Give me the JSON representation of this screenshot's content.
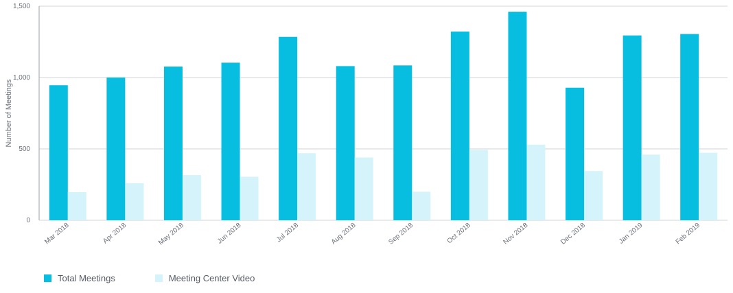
{
  "colors": {
    "total": "#07bde0",
    "video": "#d4f3fa",
    "grid": "#cfd3d7",
    "axis_text": "#6b7079"
  },
  "chart_data": {
    "type": "bar",
    "title": "",
    "xlabel": "",
    "ylabel": "Number of Meetings",
    "ylim": [
      0,
      1500
    ],
    "yticks": [
      0,
      500,
      1000,
      1500
    ],
    "ytick_labels": [
      "0",
      "500",
      "1,000",
      "1,500"
    ],
    "grid": true,
    "legend_position": "bottom-left",
    "categories": [
      "Mar 2018",
      "Apr 2018",
      "May 2018",
      "Jun 2018",
      "Jul 2018",
      "Aug 2018",
      "Sep 2018",
      "Oct 2018",
      "Nov 2018",
      "Dec 2018",
      "Jan 2019",
      "Feb 2019"
    ],
    "series": [
      {
        "name": "Total Meetings",
        "color": "#07bde0",
        "values": [
          946,
          1000,
          1077,
          1104,
          1285,
          1080,
          1085,
          1322,
          1461,
          929,
          1295,
          1305
        ]
      },
      {
        "name": "Meeting Center Video",
        "color": "#d4f3fa",
        "values": [
          197,
          260,
          317,
          305,
          470,
          440,
          200,
          493,
          530,
          345,
          460,
          473
        ]
      }
    ]
  }
}
